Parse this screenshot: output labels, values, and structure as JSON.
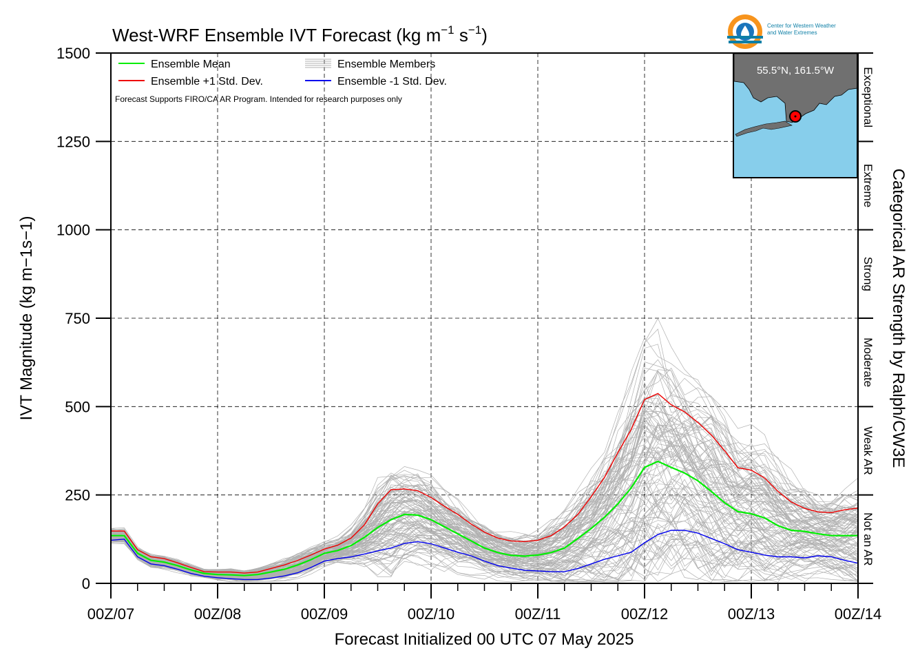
{
  "header": {
    "title": "West-WRF Ensemble IVT Forecast (kg m",
    "title_exp1": "−1",
    "title_mid": " s",
    "title_exp2": "−1",
    "title_end": ")"
  },
  "logo": {
    "line1": "Center for Western Weather",
    "line2": "and Water Extremes",
    "colors": {
      "orange": "#f7941d",
      "blue": "#1b75bc",
      "teal": "#0e7fa6"
    }
  },
  "legend": {
    "mean": "Ensemble Mean",
    "plus": "Ensemble +1 Std. Dev.",
    "members": "Ensemble Members",
    "minus": "Ensemble -1 Std. Dev."
  },
  "note": "Forecast Supports FIRO/CA AR Program. Intended for research purposes only",
  "inset": {
    "label": "55.5°N, 161.5°W",
    "ocean_color": "#87ceeb",
    "land_color": "#707070",
    "marker_color": "#ff0000"
  },
  "categories": {
    "title": "Categorical AR Strength by Ralph/CW3E",
    "bands": [
      {
        "label": "Not an AR",
        "from": 0,
        "to": 250
      },
      {
        "label": "Weak AR",
        "from": 250,
        "to": 500
      },
      {
        "label": "Moderate",
        "from": 500,
        "to": 750
      },
      {
        "label": "Strong",
        "from": 750,
        "to": 1000
      },
      {
        "label": "Extreme",
        "from": 1000,
        "to": 1250
      },
      {
        "label": "Exceptional",
        "from": 1250,
        "to": 1500
      }
    ]
  },
  "chart_data": {
    "type": "line",
    "title": "West-WRF Ensemble IVT Forecast (kg m−1 s−1)",
    "xlabel": "Forecast Initialized 00 UTC 07 May 2025",
    "ylabel": "IVT Magnitude (kg m−1s−1)",
    "ylim": [
      0,
      1500
    ],
    "xlim": [
      "2025-05-07T00Z",
      "2025-05-14T00Z"
    ],
    "x_step": "6h",
    "x_ticks": [
      "00Z/07",
      "00Z/08",
      "00Z/09",
      "00Z/10",
      "00Z/11",
      "00Z/12",
      "00Z/13",
      "00Z/14"
    ],
    "y_ticks": [
      0,
      250,
      500,
      750,
      1000,
      1250,
      1500
    ],
    "grid": true,
    "legend_position": "top-left",
    "series": [
      {
        "name": "Ensemble Mean",
        "color": "#00ee00",
        "values": [
          135,
          135,
          85,
          65,
          60,
          50,
          38,
          28,
          25,
          24,
          22,
          25,
          32,
          40,
          52,
          67,
          85,
          93,
          107,
          130,
          158,
          180,
          195,
          193,
          180,
          160,
          140,
          120,
          100,
          87,
          79,
          77,
          80,
          87,
          100,
          127,
          155,
          187,
          225,
          270,
          328,
          345,
          328,
          312,
          290,
          260,
          228,
          203,
          197,
          185,
          163,
          150,
          147,
          140,
          135,
          135,
          135
        ]
      },
      {
        "name": "Ensemble +1 Std. Dev.",
        "color": "#ee0000",
        "values": [
          148,
          148,
          95,
          75,
          70,
          58,
          45,
          33,
          32,
          32,
          29,
          32,
          42,
          52,
          65,
          80,
          97,
          108,
          128,
          165,
          225,
          265,
          267,
          262,
          243,
          218,
          195,
          168,
          145,
          128,
          120,
          118,
          122,
          135,
          160,
          195,
          245,
          300,
          370,
          435,
          520,
          537,
          505,
          485,
          455,
          420,
          375,
          327,
          320,
          298,
          260,
          230,
          212,
          202,
          200,
          208,
          213
        ]
      },
      {
        "name": "Ensemble -1 Std. Dev.",
        "color": "#0000ee",
        "values": [
          122,
          125,
          75,
          55,
          50,
          40,
          28,
          20,
          16,
          13,
          11,
          11,
          15,
          21,
          30,
          45,
          63,
          70,
          75,
          83,
          92,
          100,
          113,
          118,
          112,
          100,
          88,
          78,
          63,
          50,
          43,
          37,
          35,
          33,
          33,
          42,
          55,
          68,
          78,
          88,
          115,
          138,
          150,
          150,
          142,
          127,
          112,
          95,
          88,
          80,
          75,
          75,
          72,
          78,
          75,
          65,
          57
        ]
      }
    ],
    "members": {
      "name": "Ensemble Members",
      "color": "#b0b0b0",
      "note": "individual member traces scatter around the mean, spread roughly between the -1 and +1 std dev curves with outliers to about 800 near 00Z/12"
    }
  }
}
